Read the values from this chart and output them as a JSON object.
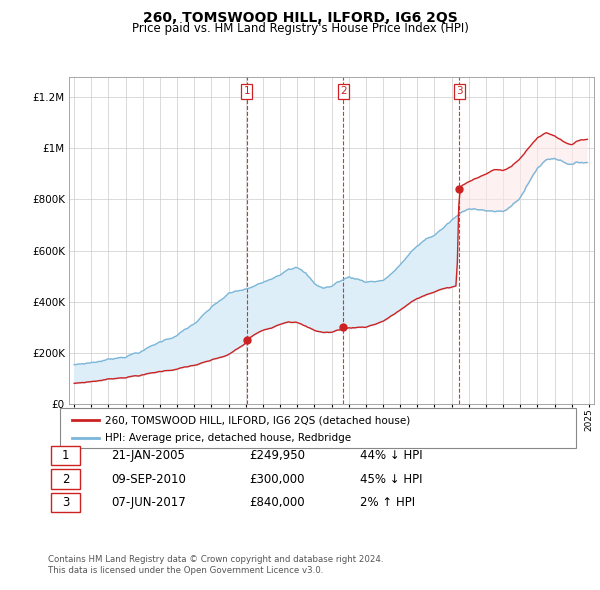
{
  "title": "260, TOMSWOOD HILL, ILFORD, IG6 2QS",
  "subtitle": "Price paid vs. HM Land Registry's House Price Index (HPI)",
  "ytick_values": [
    0,
    200000,
    400000,
    600000,
    800000,
    1000000,
    1200000
  ],
  "ytick_labels": [
    "£0",
    "£200K",
    "£400K",
    "£600K",
    "£800K",
    "£1M",
    "£1.2M"
  ],
  "ylim": [
    0,
    1280000
  ],
  "xlim_start": 1994.7,
  "xlim_end": 2025.3,
  "hpi_color": "#7ab6d9",
  "price_color": "#cc2222",
  "fill_color": "#ddeef8",
  "bg_color": "#ffffff",
  "grid_color": "#cccccc",
  "transactions": [
    {
      "year": 2005.06,
      "price": 249950,
      "label": "1"
    },
    {
      "year": 2010.69,
      "price": 300000,
      "label": "2"
    },
    {
      "year": 2017.44,
      "price": 840000,
      "label": "3"
    }
  ],
  "transaction_labels": [
    {
      "num": "1",
      "date": "21-JAN-2005",
      "price": "£249,950",
      "pct": "44%",
      "dir": "↓",
      "rel": "HPI"
    },
    {
      "num": "2",
      "date": "09-SEP-2010",
      "price": "£300,000",
      "pct": "45%",
      "dir": "↓",
      "rel": "HPI"
    },
    {
      "num": "3",
      "date": "07-JUN-2017",
      "price": "£840,000",
      "pct": "2%",
      "dir": "↑",
      "rel": "HPI"
    }
  ],
  "legend_line1": "260, TOMSWOOD HILL, ILFORD, IG6 2QS (detached house)",
  "legend_line2": "HPI: Average price, detached house, Redbridge",
  "footer1": "Contains HM Land Registry data © Crown copyright and database right 2024.",
  "footer2": "This data is licensed under the Open Government Licence v3.0."
}
